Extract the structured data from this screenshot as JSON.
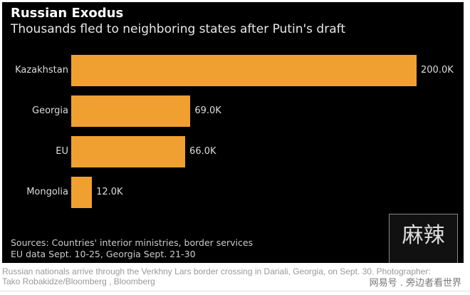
{
  "chart_data": {
    "type": "bar",
    "orientation": "horizontal",
    "title": "Russian Exodus",
    "subtitle": "Thousands fled to neighboring states after Putin's draft",
    "categories": [
      "Kazakhstan",
      "Georgia",
      "EU",
      "Mongolia"
    ],
    "values": [
      200.0,
      69.0,
      66.0,
      12.0
    ],
    "value_labels": [
      "200.0K",
      "69.0K",
      "66.0K",
      "12.0K"
    ],
    "xlim": [
      0,
      200
    ],
    "bar_color": "#f0a030",
    "sources": "Sources: Countries' interior ministries, border services",
    "note": "EU data Sept. 10-25, Georgia Sept. 21-30"
  },
  "caption": {
    "line1": "Russian nationals arrive through the Verkhny Lars border crossing in Dariali, Georgia, on Sept. 30. Photographer:",
    "line2": "Tako Robakidze/Bloomberg , Bloomberg"
  },
  "watermark": {
    "logo": "麻辣",
    "text": "网易号 . 旁边者看世界"
  }
}
